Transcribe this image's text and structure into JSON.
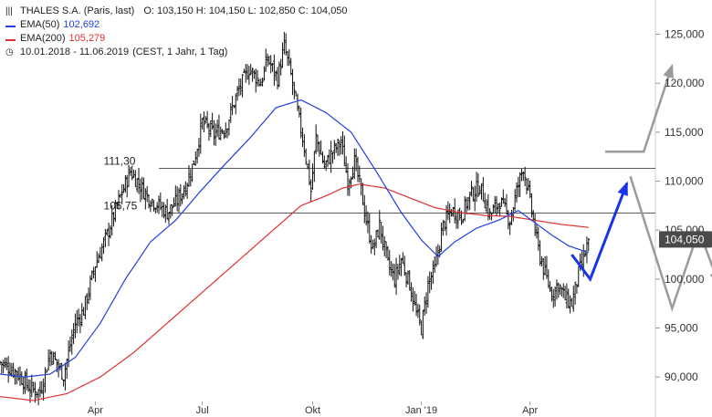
{
  "legend": {
    "title": "THALES S.A. (Paris, last)",
    "ohlc": "O: 103,150   H: 104,150   L: 102,850   C: 104,050",
    "ema50_label": "EMA(50)",
    "ema50_value": "102,692",
    "ema200_label": "EMA(200)",
    "ema200_value": "105,279",
    "range": "10.01.2018 - 11.06.2019",
    "range_note": "(CEST, 1 Jahr, 1 Tag)"
  },
  "colors": {
    "ema50": "#1f3fe0",
    "ema200": "#e03030",
    "bars": "#111111",
    "arrow_blue": "#1a35e6",
    "arrow_gray": "#9a9a9a",
    "hline": "#444444"
  },
  "chart_data": {
    "type": "ohlc",
    "title": "THALES S.A. (Paris, last)",
    "x_ticks": [
      {
        "label": "Apr",
        "day": 57
      },
      {
        "label": "Jul",
        "day": 121
      },
      {
        "label": "Okt",
        "day": 187
      },
      {
        "label": "Jan '19",
        "day": 252
      },
      {
        "label": "Apr",
        "day": 317
      }
    ],
    "y_ticks": [
      "90,000",
      "95,000",
      "100,000",
      "105,000",
      "110,000",
      "115,000",
      "120,000",
      "125,000"
    ],
    "y_tick_values": [
      90,
      95,
      100,
      105,
      110,
      115,
      120,
      125
    ],
    "ylim": [
      87.5,
      128.5
    ],
    "day_range": [
      0,
      392
    ],
    "last_price": "104,050",
    "last_value": 104.05,
    "levels": [
      {
        "label": "111,30",
        "value": 111.3
      },
      {
        "label": "106,75",
        "value": 106.75
      }
    ],
    "close_keypoints": [
      [
        0,
        91.5
      ],
      [
        10,
        90.5
      ],
      [
        18,
        88.8
      ],
      [
        24,
        88.5
      ],
      [
        30,
        92.5
      ],
      [
        38,
        90.2
      ],
      [
        45,
        95.5
      ],
      [
        50,
        96.8
      ],
      [
        57,
        101.5
      ],
      [
        64,
        104.5
      ],
      [
        71,
        108.0
      ],
      [
        78,
        111.0
      ],
      [
        82,
        110.0
      ],
      [
        88,
        108.5
      ],
      [
        95,
        107.5
      ],
      [
        100,
        106.8
      ],
      [
        106,
        108.0
      ],
      [
        111,
        109.5
      ],
      [
        116,
        112.0
      ],
      [
        121,
        116.0
      ],
      [
        128,
        114.8
      ],
      [
        135,
        115.5
      ],
      [
        142,
        119.0
      ],
      [
        149,
        121.5
      ],
      [
        156,
        120.0
      ],
      [
        160,
        122.5
      ],
      [
        166,
        120.5
      ],
      [
        170,
        123.8
      ],
      [
        174,
        120.8
      ],
      [
        178,
        117.0
      ],
      [
        182,
        113.5
      ],
      [
        186,
        109.0
      ],
      [
        189,
        114.5
      ],
      [
        194,
        111.5
      ],
      [
        199,
        113.0
      ],
      [
        204,
        114.0
      ],
      [
        208,
        110.0
      ],
      [
        212,
        112.0
      ],
      [
        216,
        109.0
      ],
      [
        219,
        106.0
      ],
      [
        223,
        103.0
      ],
      [
        227,
        105.5
      ],
      [
        232,
        101.5
      ],
      [
        236,
        100.0
      ],
      [
        240,
        102.0
      ],
      [
        245,
        99.5
      ],
      [
        249,
        96.5
      ],
      [
        252,
        95.0
      ],
      [
        256,
        99.5
      ],
      [
        260,
        101.0
      ],
      [
        265,
        105.5
      ],
      [
        270,
        107.0
      ],
      [
        276,
        106.5
      ],
      [
        281,
        108.5
      ],
      [
        287,
        109.5
      ],
      [
        293,
        106.5
      ],
      [
        299,
        108.0
      ],
      [
        305,
        106.0
      ],
      [
        309,
        109.0
      ],
      [
        313,
        111.5
      ],
      [
        318,
        107.0
      ],
      [
        322,
        103.0
      ],
      [
        326,
        100.5
      ],
      [
        330,
        98.5
      ],
      [
        334,
        99.5
      ],
      [
        338,
        98.0
      ],
      [
        342,
        97.5
      ],
      [
        346,
        100.5
      ],
      [
        349,
        102.0
      ],
      [
        352,
        104.05
      ]
    ],
    "ema50_keypoints": [
      [
        0,
        90.3
      ],
      [
        15,
        90.0
      ],
      [
        30,
        90.3
      ],
      [
        45,
        92.0
      ],
      [
        60,
        95.5
      ],
      [
        75,
        100.0
      ],
      [
        90,
        103.8
      ],
      [
        105,
        106.0
      ],
      [
        120,
        109.0
      ],
      [
        135,
        111.8
      ],
      [
        150,
        114.5
      ],
      [
        165,
        117.5
      ],
      [
        180,
        118.3
      ],
      [
        195,
        117.0
      ],
      [
        210,
        115.0
      ],
      [
        225,
        111.0
      ],
      [
        240,
        106.8
      ],
      [
        252,
        104.0
      ],
      [
        262,
        102.3
      ],
      [
        272,
        103.8
      ],
      [
        285,
        105.2
      ],
      [
        298,
        106.0
      ],
      [
        310,
        107.0
      ],
      [
        318,
        106.0
      ],
      [
        330,
        104.5
      ],
      [
        340,
        103.4
      ],
      [
        352,
        102.7
      ]
    ],
    "ema200_keypoints": [
      [
        0,
        88.0
      ],
      [
        20,
        87.6
      ],
      [
        40,
        88.3
      ],
      [
        60,
        90.0
      ],
      [
        80,
        92.5
      ],
      [
        100,
        95.5
      ],
      [
        120,
        98.5
      ],
      [
        140,
        101.5
      ],
      [
        160,
        104.5
      ],
      [
        180,
        107.5
      ],
      [
        195,
        108.5
      ],
      [
        205,
        109.3
      ],
      [
        215,
        109.7
      ],
      [
        230,
        109.3
      ],
      [
        245,
        108.3
      ],
      [
        260,
        107.3
      ],
      [
        275,
        106.8
      ],
      [
        290,
        106.5
      ],
      [
        305,
        106.4
      ],
      [
        320,
        106.0
      ],
      [
        335,
        105.6
      ],
      [
        352,
        105.28
      ]
    ],
    "projection_blue": [
      [
        342,
        102.5
      ],
      [
        353,
        100.0
      ],
      [
        375,
        109.8
      ]
    ],
    "projection_gray_up": [
      [
        362,
        113.0
      ],
      [
        385,
        113.0
      ],
      [
        402,
        121.8
      ]
    ],
    "projection_gray_down": [
      [
        377,
        110.5
      ],
      [
        402,
        97.0
      ],
      [
        418,
        105.0
      ],
      [
        430,
        99.5
      ]
    ]
  }
}
